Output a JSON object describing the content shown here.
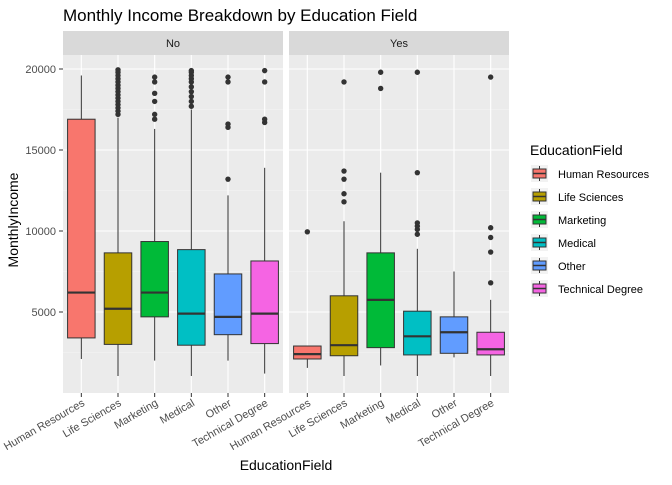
{
  "chart_data": {
    "type": "boxplot",
    "title": "Monthly Income Breakdown by Education Field",
    "xlabel": "EducationField",
    "ylabel": "MonthlyIncome",
    "ylim": [
      0,
      22000
    ],
    "yticks": [
      5000,
      10000,
      15000,
      20000
    ],
    "grid": true,
    "facet_labels": [
      "No",
      "Yes"
    ],
    "categories": [
      "Human Resources",
      "Life Sciences",
      "Marketing",
      "Medical",
      "Other",
      "Technical Degree"
    ],
    "legend": {
      "title": "EducationField",
      "position": "right",
      "entries": [
        "Human Resources",
        "Life Sciences",
        "Marketing",
        "Medical",
        "Other",
        "Technical Degree"
      ]
    },
    "colors": [
      "#F8766D",
      "#B79F00",
      "#00BA38",
      "#00BFC4",
      "#619CFF",
      "#F564E3"
    ],
    "panels": [
      {
        "facet": "No",
        "boxes": [
          {
            "category": "Human Resources",
            "min": 2100,
            "q1": 3400,
            "median": 6200,
            "q3": 16900,
            "max": 19600,
            "outliers": []
          },
          {
            "category": "Life Sciences",
            "min": 1050,
            "q1": 3000,
            "median": 5200,
            "q3": 8650,
            "max": 17000,
            "outliers": [
              17200,
              17400,
              17600,
              17800,
              18000,
              18200,
              18400,
              18600,
              18800,
              19000,
              19200,
              19400,
              19600,
              19800,
              19950
            ]
          },
          {
            "category": "Marketing",
            "min": 2000,
            "q1": 4700,
            "median": 6200,
            "q3": 9350,
            "max": 16300,
            "outliers": [
              16900,
              17200,
              18000,
              18500,
              19200,
              19500
            ]
          },
          {
            "category": "Medical",
            "min": 1050,
            "q1": 2950,
            "median": 4900,
            "q3": 8850,
            "max": 17500,
            "outliers": [
              17700,
              18000,
              18300,
              18600,
              18900,
              19200,
              19400,
              19600,
              19800,
              19900
            ]
          },
          {
            "category": "Other",
            "min": 2000,
            "q1": 3600,
            "median": 4700,
            "q3": 7350,
            "max": 12200,
            "outliers": [
              13200,
              16400,
              16600,
              19200,
              19500
            ]
          },
          {
            "category": "Technical Degree",
            "min": 1200,
            "q1": 3050,
            "median": 4900,
            "q3": 8150,
            "max": 13900,
            "outliers": [
              16700,
              16900,
              19200,
              19900
            ]
          }
        ]
      },
      {
        "facet": "Yes",
        "boxes": [
          {
            "category": "Human Resources",
            "min": 1550,
            "q1": 2100,
            "median": 2400,
            "q3": 2900,
            "max": 2900,
            "outliers": [
              9950
            ]
          },
          {
            "category": "Life Sciences",
            "min": 1050,
            "q1": 2300,
            "median": 2950,
            "q3": 6000,
            "max": 10600,
            "outliers": [
              11800,
              12300,
              13200,
              13700,
              19200
            ]
          },
          {
            "category": "Marketing",
            "min": 1700,
            "q1": 2800,
            "median": 5750,
            "q3": 8650,
            "max": 13600,
            "outliers": [
              18800,
              19800
            ]
          },
          {
            "category": "Medical",
            "min": 1050,
            "q1": 2350,
            "median": 3500,
            "q3": 5050,
            "max": 8900,
            "outliers": [
              9800,
              10100,
              10300,
              10500,
              13600,
              19800
            ]
          },
          {
            "category": "Other",
            "min": 2200,
            "q1": 2450,
            "median": 3750,
            "q3": 4700,
            "max": 7500,
            "outliers": []
          },
          {
            "category": "Technical Degree",
            "min": 1050,
            "q1": 2350,
            "median": 2700,
            "q3": 3750,
            "max": 5750,
            "outliers": [
              6800,
              8700,
              9600,
              10200,
              19500
            ]
          }
        ]
      }
    ]
  }
}
